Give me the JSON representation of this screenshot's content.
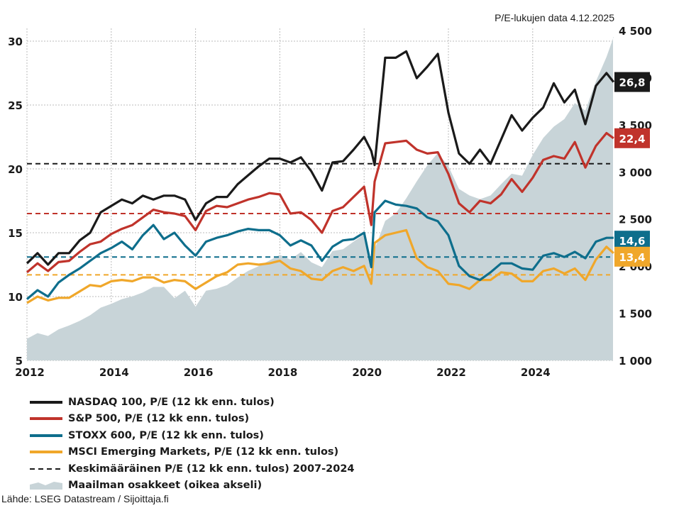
{
  "chart_data": {
    "type": "line",
    "note": "P/E-lukujen data 4.12.2025",
    "x_ticks": [
      "2012",
      "2014",
      "2016",
      "2018",
      "2020",
      "2022",
      "2024"
    ],
    "x_range": [
      2012.0,
      2025.92
    ],
    "y_left": {
      "ticks": [
        "5",
        "10",
        "15",
        "20",
        "25",
        "30"
      ],
      "values": [
        5,
        10,
        15,
        20,
        25,
        30
      ],
      "range": [
        5,
        30.9
      ]
    },
    "y_right": {
      "ticks": [
        "1 000",
        "1 500",
        "2 000",
        "2 500",
        "3 000",
        "3 500",
        "4 000",
        "4 500"
      ],
      "values": [
        1000,
        1500,
        2000,
        2500,
        3000,
        3500,
        4000,
        4500
      ],
      "range": [
        1000,
        4500
      ],
      "label": "oikea akseli"
    },
    "grid": true,
    "x": [
      2012.0,
      2012.25,
      2012.5,
      2012.75,
      2013.0,
      2013.25,
      2013.5,
      2013.75,
      2014.0,
      2014.25,
      2014.5,
      2014.75,
      2015.0,
      2015.25,
      2015.5,
      2015.75,
      2016.0,
      2016.25,
      2016.5,
      2016.75,
      2017.0,
      2017.25,
      2017.5,
      2017.75,
      2018.0,
      2018.25,
      2018.5,
      2018.75,
      2019.0,
      2019.25,
      2019.5,
      2019.75,
      2020.0,
      2020.17,
      2020.25,
      2020.5,
      2020.75,
      2021.0,
      2021.25,
      2021.5,
      2021.75,
      2022.0,
      2022.25,
      2022.5,
      2022.75,
      2023.0,
      2023.25,
      2023.5,
      2023.75,
      2024.0,
      2024.25,
      2024.5,
      2024.75,
      2025.0,
      2025.25,
      2025.5,
      2025.75,
      2025.92
    ],
    "series": [
      {
        "name": "NASDAQ 100, P/E (12 kk enn. tulos)",
        "color": "#1a1a1a",
        "end_label": "26,8",
        "values": [
          12.6,
          13.4,
          12.5,
          13.4,
          13.4,
          14.4,
          15.0,
          16.6,
          17.1,
          17.6,
          17.3,
          17.9,
          17.6,
          17.9,
          17.9,
          17.6,
          16.0,
          17.3,
          17.8,
          17.8,
          18.8,
          19.5,
          20.2,
          20.8,
          20.8,
          20.5,
          20.9,
          19.8,
          18.3,
          20.5,
          20.6,
          21.5,
          22.5,
          21.4,
          20.3,
          28.7,
          28.7,
          29.2,
          27.1,
          28.0,
          29.0,
          24.4,
          21.2,
          20.4,
          21.5,
          20.4,
          22.3,
          24.2,
          23.0,
          24.0,
          24.8,
          26.7,
          25.2,
          26.2,
          23.5,
          26.5,
          27.5,
          26.8
        ]
      },
      {
        "name": "S&P 500, P/E (12 kk enn. tulos)",
        "color": "#c0332b",
        "end_label": "22,4",
        "values": [
          11.9,
          12.6,
          12.0,
          12.7,
          12.8,
          13.5,
          14.1,
          14.3,
          14.9,
          15.3,
          15.6,
          16.2,
          16.8,
          16.6,
          16.5,
          16.3,
          15.2,
          16.7,
          17.1,
          17.0,
          17.3,
          17.6,
          17.8,
          18.1,
          18.0,
          16.5,
          16.6,
          16.0,
          15.0,
          16.7,
          17.0,
          17.8,
          18.6,
          15.6,
          19.0,
          22.0,
          22.1,
          22.2,
          21.5,
          21.2,
          21.3,
          19.6,
          17.3,
          16.6,
          17.5,
          17.3,
          18.0,
          19.2,
          18.2,
          19.3,
          20.7,
          21.0,
          20.8,
          22.1,
          20.1,
          21.8,
          22.8,
          22.4
        ]
      },
      {
        "name": "STOXX 600, P/E (12 kk enn. tulos)",
        "color": "#0e6e8c",
        "end_label": "14,6",
        "values": [
          9.8,
          10.5,
          10.0,
          11.1,
          11.7,
          12.2,
          12.8,
          13.4,
          13.8,
          14.3,
          13.7,
          14.8,
          15.6,
          14.5,
          15.0,
          14.0,
          13.2,
          14.3,
          14.6,
          14.8,
          15.1,
          15.3,
          15.2,
          15.2,
          14.8,
          14.0,
          14.4,
          14.0,
          12.8,
          13.9,
          14.4,
          14.5,
          15.0,
          12.3,
          16.6,
          17.5,
          17.2,
          17.1,
          16.9,
          16.2,
          15.9,
          14.8,
          12.4,
          11.6,
          11.3,
          11.9,
          12.6,
          12.6,
          12.2,
          12.1,
          13.2,
          13.4,
          13.1,
          13.5,
          13.0,
          14.3,
          14.6,
          14.6
        ]
      },
      {
        "name": "MSCI Emerging Markets, P/E (12 kk enn. tulos)",
        "color": "#f0a72a",
        "end_label": "13,4",
        "values": [
          9.5,
          10.0,
          9.7,
          9.9,
          9.9,
          10.4,
          10.9,
          10.8,
          11.2,
          11.3,
          11.2,
          11.5,
          11.5,
          11.1,
          11.3,
          11.2,
          10.6,
          11.1,
          11.6,
          11.9,
          12.5,
          12.6,
          12.5,
          12.6,
          12.8,
          12.2,
          12.0,
          11.4,
          11.3,
          12.0,
          12.3,
          12.0,
          12.4,
          11.0,
          14.2,
          14.8,
          15.0,
          15.2,
          13.0,
          12.3,
          12.0,
          11.0,
          10.9,
          10.6,
          11.3,
          11.3,
          11.9,
          11.8,
          11.2,
          11.2,
          12.0,
          12.2,
          11.8,
          12.2,
          11.3,
          12.9,
          13.9,
          13.4
        ]
      },
      {
        "name": "Maailman osakkeet (oikea akseli)",
        "color": "#c8d4d8",
        "axis": "right",
        "type": "area",
        "values": [
          1230,
          1290,
          1260,
          1330,
          1370,
          1420,
          1480,
          1560,
          1600,
          1650,
          1680,
          1720,
          1780,
          1780,
          1660,
          1740,
          1570,
          1740,
          1760,
          1800,
          1880,
          1950,
          2000,
          2060,
          2120,
          2070,
          2150,
          2040,
          1990,
          2160,
          2180,
          2260,
          2340,
          1910,
          2180,
          2480,
          2560,
          2720,
          2900,
          3070,
          3200,
          3060,
          2820,
          2750,
          2710,
          2750,
          2870,
          2980,
          2960,
          3180,
          3360,
          3480,
          3560,
          3730,
          3650,
          3960,
          4220,
          4430
        ]
      },
      {
        "name": "Keskimääräinen P/E (12 kk enn. tulos) 2007-2024",
        "type": "hlines",
        "dashed": true,
        "lines": [
          {
            "of": "NASDAQ 100",
            "value": 20.4,
            "color": "#1a1a1a"
          },
          {
            "of": "S&P 500",
            "value": 16.5,
            "color": "#c0332b"
          },
          {
            "of": "STOXX 600",
            "value": 13.1,
            "color": "#0e6e8c"
          },
          {
            "of": "MSCI Emerging Markets",
            "value": 11.7,
            "color": "#f0a72a"
          }
        ]
      }
    ],
    "legend": {
      "placement": "bottom-left",
      "entries": [
        {
          "label": "NASDAQ 100, P/E (12 kk enn. tulos)",
          "style": "line",
          "color": "#1a1a1a"
        },
        {
          "label": "S&P 500, P/E (12 kk enn. tulos)",
          "style": "line",
          "color": "#c0332b"
        },
        {
          "label": "STOXX 600, P/E (12 kk enn. tulos)",
          "style": "line",
          "color": "#0e6e8c"
        },
        {
          "label": "MSCI Emerging Markets, P/E (12 kk enn. tulos)",
          "style": "line",
          "color": "#f0a72a"
        },
        {
          "label": "Keskimääräinen P/E (12 kk enn. tulos) 2007-2024",
          "style": "dashed",
          "color": "#1a1a1a"
        },
        {
          "label": "Maailman osakkeet (oikea akseli)",
          "style": "area",
          "color": "#c8d4d8"
        }
      ]
    },
    "source": "Lähde: LSEG Datastream / Sijoittaja.fi"
  }
}
